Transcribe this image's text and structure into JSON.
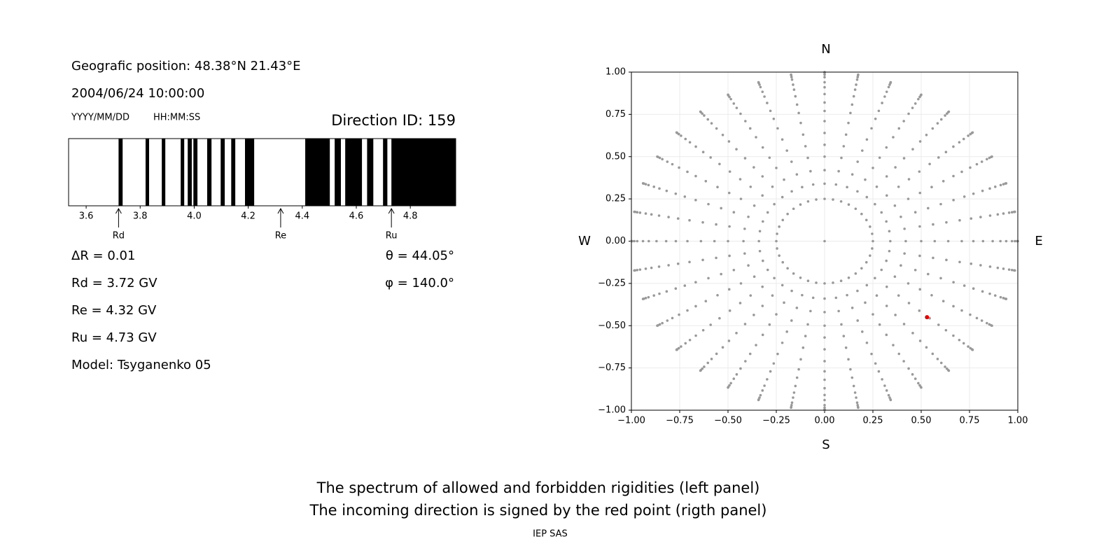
{
  "info": {
    "position": "Geografic position: 48.38°N 21.43°E",
    "datetime": "2004/06/24 10:00:00",
    "date_format": "YYYY/MM/DD",
    "time_format": "HH:MM:SS",
    "direction_id": "Direction ID: 159",
    "delta_r": "ΔR = 0.01",
    "rd": "Rd = 3.72 GV",
    "re": "Re = 4.32 GV",
    "ru": "Ru = 4.73 GV",
    "model": "Model: Tsyganenko 05",
    "theta": "θ = 44.05°",
    "phi": "φ = 140.0°"
  },
  "caption": {
    "line1": "The spectrum of allowed and forbidden rigidities (left panel)",
    "line2": "The incoming direction is signed by the red point (rigth panel)",
    "credit": "IEP SAS"
  },
  "chart_data": [
    {
      "type": "bands",
      "color": "#000000",
      "bands": [
        [
          3.72,
          3.735
        ],
        [
          3.82,
          3.833
        ],
        [
          3.88,
          3.893
        ],
        [
          3.95,
          3.963
        ],
        [
          3.976,
          3.991
        ],
        [
          3.997,
          4.012
        ],
        [
          4.048,
          4.064
        ],
        [
          4.098,
          4.113
        ],
        [
          4.137,
          4.152
        ],
        [
          4.188,
          4.222
        ],
        [
          4.411,
          4.502
        ],
        [
          4.52,
          4.543
        ],
        [
          4.559,
          4.621
        ],
        [
          4.64,
          4.663
        ],
        [
          4.699,
          4.715
        ],
        [
          4.73,
          4.968
        ]
      ],
      "xlim": [
        3.535,
        4.968
      ],
      "xticks": [
        3.6,
        3.8,
        {
          "value": 4,
          "label": "4.0"
        },
        4.2,
        4.4,
        4.6,
        4.8
      ],
      "markers": [
        {
          "label": "Rd",
          "value": 3.72
        },
        {
          "label": "Re",
          "value": 4.32
        },
        {
          "label": "Ru",
          "value": 4.73
        }
      ]
    },
    {
      "type": "scatter",
      "grid": true,
      "compass": {
        "north": "N",
        "south": "S",
        "east": "E",
        "west": "W"
      },
      "grid_points": {
        "color": "#999999",
        "angles_deg": [
          0,
          10,
          20,
          30,
          40,
          50,
          60,
          70,
          80,
          90,
          100,
          110,
          120,
          130,
          140,
          150,
          160,
          170,
          180,
          190,
          200,
          210,
          220,
          230,
          240,
          250,
          260,
          270,
          280,
          290,
          300,
          310,
          320,
          330,
          340,
          350
        ],
        "radii": [
          0.25,
          0.34,
          0.42,
          0.5,
          0.57,
          0.64,
          0.71,
          0.77,
          0.82,
          0.87,
          0.91,
          0.94,
          0.97,
          0.985,
          0.996,
          1.0
        ]
      },
      "series": [
        {
          "color": "#999999",
          "x": [
            0
          ],
          "y": [
            0
          ]
        },
        {
          "color": "#e00000",
          "x": [
            0.53
          ],
          "y": [
            -0.45
          ]
        }
      ],
      "xlim": [
        -1,
        1
      ],
      "ylim": [
        -1,
        1
      ],
      "xticks": [
        {
          "value": -1,
          "label": "−1.00"
        },
        {
          "value": -0.75,
          "label": "−0.75"
        },
        {
          "value": -0.5,
          "label": "−0.50"
        },
        {
          "value": -0.25,
          "label": "−0.25"
        },
        {
          "value": 0,
          "label": "0.00"
        },
        {
          "value": 0.25,
          "label": "0.25"
        },
        {
          "value": 0.5,
          "label": "0.50"
        },
        {
          "value": 0.75,
          "label": "0.75"
        },
        {
          "value": 1,
          "label": "1.00"
        }
      ],
      "yticks": [
        {
          "value": -1,
          "label": "−1.00"
        },
        {
          "value": -0.75,
          "label": "−0.75"
        },
        {
          "value": -0.5,
          "label": "−0.50"
        },
        {
          "value": -0.25,
          "label": "−0.25"
        },
        {
          "value": 0,
          "label": "0.00"
        },
        {
          "value": 0.25,
          "label": "0.25"
        },
        {
          "value": 0.5,
          "label": "0.50"
        },
        {
          "value": 0.75,
          "label": "0.75"
        },
        {
          "value": 1,
          "label": "1.00"
        }
      ]
    }
  ]
}
